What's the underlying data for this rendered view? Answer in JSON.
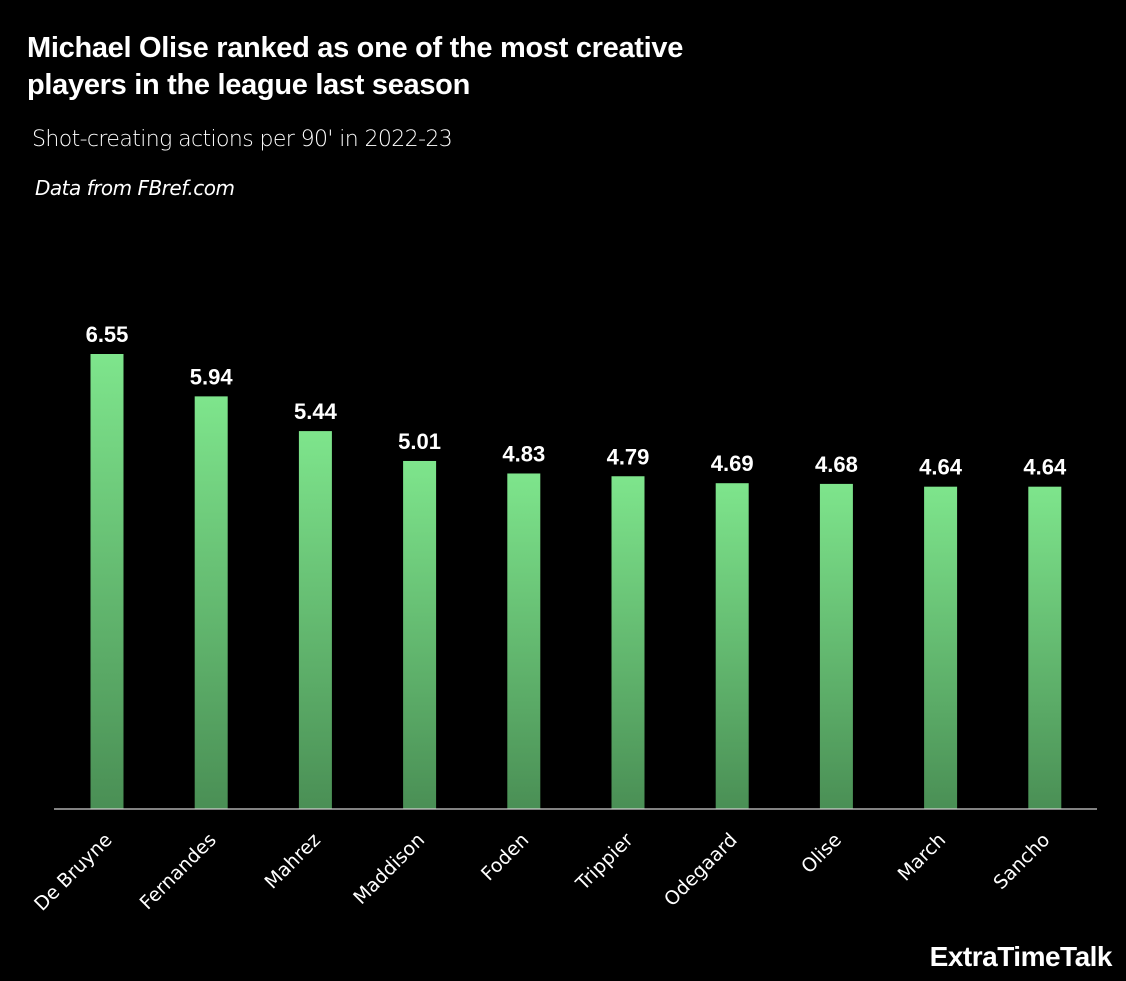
{
  "header": {
    "title_line1": "Michael Olise ranked as one of the most creative",
    "title_line2": "players in the league last season",
    "subtitle": "Shot-creating actions per 90' in 2022-23",
    "source": "Data from FBref.com"
  },
  "brand": "ExtraTimeTalk",
  "colors": {
    "background": "#000000",
    "bar_top": "#7ee58c",
    "bar_bottom": "#4a8f55",
    "baseline": "#d0d0d0",
    "text": "#ffffff"
  },
  "chart_data": {
    "type": "bar",
    "title": "Michael Olise ranked as one of the most creative players in the league last season",
    "subtitle": "Shot-creating actions per 90' in 2022-23",
    "xlabel": "",
    "ylabel": "",
    "categories": [
      "De Bruyne",
      "Fernandes",
      "Mahrez",
      "Maddison",
      "Foden",
      "Trippier",
      "Odegaard",
      "Olise",
      "March",
      "Sancho"
    ],
    "values": [
      6.55,
      5.94,
      5.44,
      5.01,
      4.83,
      4.79,
      4.69,
      4.68,
      4.64,
      4.64
    ],
    "value_labels": [
      "6.55",
      "5.94",
      "5.44",
      "5.01",
      "4.83",
      "4.79",
      "4.69",
      "4.68",
      "4.64",
      "4.64"
    ],
    "ylim": [
      0,
      6.55
    ],
    "grid": false,
    "legend": "none",
    "y_axis_visible": false,
    "x_tick_rotation_deg": -45
  }
}
